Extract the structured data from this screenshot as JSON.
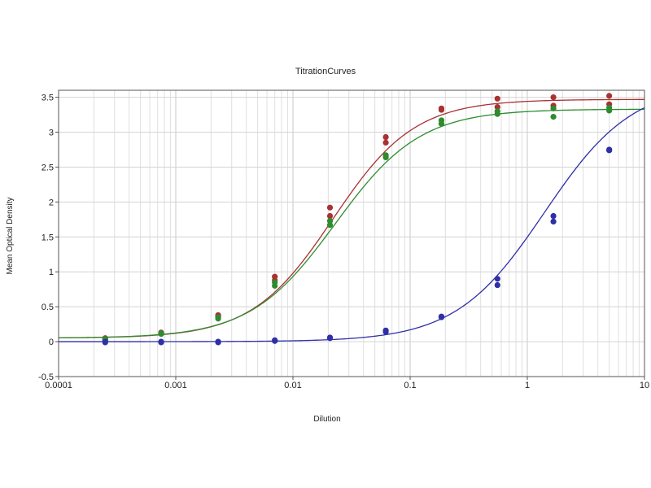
{
  "chart_data": {
    "type": "scatter",
    "title": "TitrationCurves",
    "xlabel": "Dilution",
    "ylabel": "Mean Optical Density",
    "x_scale": "log",
    "xlim": [
      0.0001,
      10
    ],
    "ylim": [
      -0.5,
      3.6
    ],
    "x_ticks": [
      {
        "value": 0.0001,
        "label": "0.0001"
      },
      {
        "value": 0.001,
        "label": "0.001"
      },
      {
        "value": 0.01,
        "label": "0.01"
      },
      {
        "value": 0.1,
        "label": "0.1"
      },
      {
        "value": 1,
        "label": "1"
      },
      {
        "value": 10,
        "label": "10"
      }
    ],
    "y_ticks": [
      {
        "value": -0.5,
        "label": "-0.5"
      },
      {
        "value": 0,
        "label": "0"
      },
      {
        "value": 0.5,
        "label": "0.5"
      },
      {
        "value": 1,
        "label": "1"
      },
      {
        "value": 1.5,
        "label": "1.5"
      },
      {
        "value": 2,
        "label": "2"
      },
      {
        "value": 2.5,
        "label": "2.5"
      },
      {
        "value": 3,
        "label": "3"
      },
      {
        "value": 3.5,
        "label": "3.5"
      }
    ],
    "grid": true,
    "legend": "none",
    "series": [
      {
        "color": "#a83232",
        "curve": {
          "bottom": 0.05,
          "top": 3.47,
          "ec50": 0.022,
          "hill": 1.25
        },
        "points": [
          {
            "x": 0.00025,
            "y": 0.05
          },
          {
            "x": 0.00025,
            "y": 0.03
          },
          {
            "x": 0.00075,
            "y": 0.13
          },
          {
            "x": 0.00075,
            "y": 0.12
          },
          {
            "x": 0.0023,
            "y": 0.36
          },
          {
            "x": 0.0023,
            "y": 0.38
          },
          {
            "x": 0.007,
            "y": 0.93
          },
          {
            "x": 0.007,
            "y": 0.88
          },
          {
            "x": 0.0207,
            "y": 1.92
          },
          {
            "x": 0.0207,
            "y": 1.8
          },
          {
            "x": 0.062,
            "y": 2.93
          },
          {
            "x": 0.062,
            "y": 2.85
          },
          {
            "x": 0.185,
            "y": 3.34
          },
          {
            "x": 0.185,
            "y": 3.32
          },
          {
            "x": 0.556,
            "y": 3.48
          },
          {
            "x": 0.556,
            "y": 3.36
          },
          {
            "x": 1.67,
            "y": 3.5
          },
          {
            "x": 1.67,
            "y": 3.38
          },
          {
            "x": 5.0,
            "y": 3.52
          },
          {
            "x": 5.0,
            "y": 3.4
          }
        ]
      },
      {
        "color": "#2e8b2e",
        "curve": {
          "bottom": 0.05,
          "top": 3.33,
          "ec50": 0.023,
          "hill": 1.2
        },
        "points": [
          {
            "x": 0.00025,
            "y": 0.04
          },
          {
            "x": 0.00025,
            "y": 0.02
          },
          {
            "x": 0.00075,
            "y": 0.12
          },
          {
            "x": 0.00075,
            "y": 0.11
          },
          {
            "x": 0.0023,
            "y": 0.35
          },
          {
            "x": 0.0023,
            "y": 0.33
          },
          {
            "x": 0.007,
            "y": 0.85
          },
          {
            "x": 0.007,
            "y": 0.8
          },
          {
            "x": 0.0207,
            "y": 1.73
          },
          {
            "x": 0.0207,
            "y": 1.67
          },
          {
            "x": 0.062,
            "y": 2.67
          },
          {
            "x": 0.062,
            "y": 2.64
          },
          {
            "x": 0.185,
            "y": 3.17
          },
          {
            "x": 0.185,
            "y": 3.12
          },
          {
            "x": 0.556,
            "y": 3.3
          },
          {
            "x": 0.556,
            "y": 3.26
          },
          {
            "x": 1.67,
            "y": 3.34
          },
          {
            "x": 1.67,
            "y": 3.22
          },
          {
            "x": 5.0,
            "y": 3.35
          },
          {
            "x": 5.0,
            "y": 3.31
          }
        ]
      },
      {
        "color": "#2f2fa8",
        "curve": {
          "bottom": 0.0,
          "top": 3.7,
          "ec50": 1.4,
          "hill": 1.15
        },
        "points": [
          {
            "x": 0.00025,
            "y": -0.01
          },
          {
            "x": 0.00025,
            "y": 0.0
          },
          {
            "x": 0.00075,
            "y": -0.01
          },
          {
            "x": 0.00075,
            "y": 0.0
          },
          {
            "x": 0.0023,
            "y": 0.0
          },
          {
            "x": 0.0023,
            "y": -0.01
          },
          {
            "x": 0.007,
            "y": 0.02
          },
          {
            "x": 0.007,
            "y": 0.01
          },
          {
            "x": 0.0207,
            "y": 0.06
          },
          {
            "x": 0.0207,
            "y": 0.05
          },
          {
            "x": 0.062,
            "y": 0.16
          },
          {
            "x": 0.062,
            "y": 0.14
          },
          {
            "x": 0.185,
            "y": 0.36
          },
          {
            "x": 0.185,
            "y": 0.35
          },
          {
            "x": 0.556,
            "y": 0.9
          },
          {
            "x": 0.556,
            "y": 0.81
          },
          {
            "x": 1.67,
            "y": 1.8
          },
          {
            "x": 1.67,
            "y": 1.72
          },
          {
            "x": 5.0,
            "y": 2.75
          },
          {
            "x": 5.0,
            "y": 2.74
          }
        ]
      }
    ]
  }
}
